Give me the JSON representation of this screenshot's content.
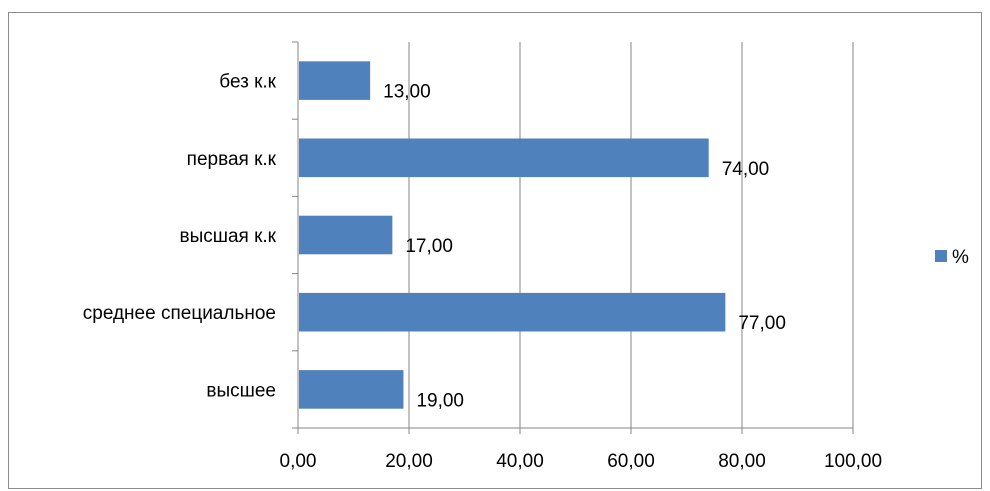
{
  "chart_data": {
    "type": "bar",
    "orientation": "horizontal",
    "categories": [
      "высшее",
      "среднее специальное",
      "высшая к.к",
      "первая к.к",
      "без к.к"
    ],
    "series": [
      {
        "name": "%",
        "values": [
          19,
          77,
          17,
          74,
          13
        ],
        "color": "#4f81bd"
      }
    ],
    "data_labels": [
      "19,00",
      "77,00",
      "17,00",
      "74,00",
      "13,00"
    ],
    "xlim": [
      0,
      100
    ],
    "xticks": [
      0,
      20,
      40,
      60,
      80,
      100
    ],
    "xtick_labels": [
      "0,00",
      "20,00",
      "40,00",
      "60,00",
      "80,00",
      "100,00"
    ],
    "grid": "vertical",
    "legend": {
      "position": "right",
      "label": "%"
    },
    "title": "",
    "xlabel": "",
    "ylabel": ""
  }
}
